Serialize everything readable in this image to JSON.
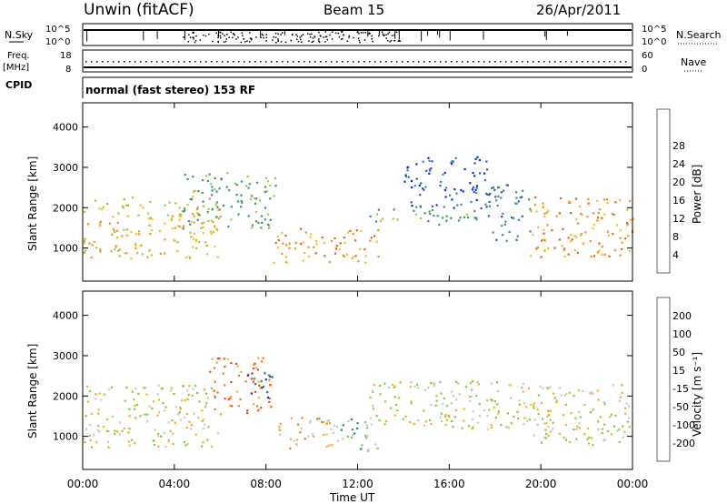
{
  "header": {
    "station": "Unwin (fitACF)",
    "beam": "Beam 15",
    "date": "26/Apr/2011"
  },
  "status_panels": {
    "nsky": {
      "label": "N.Sky",
      "ticks": [
        "10^5",
        "10^0"
      ]
    },
    "nsearch": {
      "label": "N.Search",
      "ticks": [
        "10^5",
        "10^0"
      ]
    },
    "freq": {
      "label_top": "Freq.",
      "label_unit": "[MHz]",
      "ticks": [
        "18",
        "8"
      ]
    },
    "nave": {
      "label": "Nave",
      "ticks": [
        "60",
        "0"
      ]
    },
    "cpid": {
      "label": "CPID",
      "value": "normal (fast stereo) 153 RF"
    }
  },
  "chart_data": [
    {
      "type": "heatmap",
      "panel": "power",
      "title": "",
      "xlabel": "Time UT",
      "ylabel": "Slant Range [km]",
      "x_ticks": [
        "00:00",
        "04:00",
        "08:00",
        "12:00",
        "16:00",
        "20:00",
        "00:00"
      ],
      "x_range_hours": [
        0,
        24
      ],
      "y_ticks": [
        1000,
        2000,
        3000,
        4000
      ],
      "y_range_km": [
        180,
        4600
      ],
      "colorbar": {
        "label": "Power [dB]",
        "ticks": [
          "4",
          "8",
          "12",
          "16",
          "20",
          "24",
          "28"
        ],
        "colors": [
          "#0a2bdc",
          "#2f55c8",
          "#3d8a9a",
          "#3f9a5a",
          "#9ccc3c",
          "#f0c020",
          "#f09020",
          "#ef5a1a",
          "#e0181a"
        ]
      },
      "echo_regions": [
        {
          "t0": 0,
          "t1": 6,
          "r0": 750,
          "r1": 2300,
          "level": 5
        },
        {
          "t0": 4.3,
          "t1": 8.4,
          "r0": 1500,
          "r1": 2900,
          "level": 3
        },
        {
          "t0": 8.3,
          "t1": 13,
          "r0": 650,
          "r1": 1500,
          "level": 6
        },
        {
          "t0": 12.5,
          "t1": 17.5,
          "r0": 1600,
          "r1": 2000,
          "level": 3
        },
        {
          "t0": 14,
          "t1": 17.8,
          "r0": 2000,
          "r1": 3300,
          "level": 1
        },
        {
          "t0": 17.5,
          "t1": 19.5,
          "r0": 1200,
          "r1": 2600,
          "level": 2
        },
        {
          "t0": 19.5,
          "t1": 24,
          "r0": 800,
          "r1": 2300,
          "level": 6
        }
      ]
    },
    {
      "type": "heatmap",
      "panel": "velocity",
      "title": "",
      "xlabel": "Time UT",
      "ylabel": "Slant Range [km]",
      "x_ticks": [
        "00:00",
        "04:00",
        "08:00",
        "12:00",
        "16:00",
        "20:00",
        "00:00"
      ],
      "x_range_hours": [
        0,
        24
      ],
      "y_ticks": [
        1000,
        2000,
        3000,
        4000
      ],
      "y_range_km": [
        180,
        4600
      ],
      "colorbar": {
        "label": "Velocity [m s⁻¹]",
        "ticks": [
          "200",
          "100",
          "50",
          "15",
          "-15",
          "-50",
          "-100",
          "-200"
        ],
        "colors": [
          "#1a2ad8",
          "#2e5ec0",
          "#2f8a55",
          "#7fce3a",
          "#c8c8c0",
          "#f0b020",
          "#f07a18",
          "#ef4a18",
          "#e01414"
        ]
      },
      "echo_regions": [
        {
          "t0": 0,
          "t1": 6,
          "r0": 750,
          "r1": 2300,
          "level": 4
        },
        {
          "t0": 5.5,
          "t1": 8.2,
          "r0": 1600,
          "r1": 3000,
          "level": 6
        },
        {
          "t0": 7,
          "t1": 8.3,
          "r0": 1900,
          "r1": 2600,
          "level": 1
        },
        {
          "t0": 8.3,
          "t1": 11,
          "r0": 650,
          "r1": 1500,
          "level": 5
        },
        {
          "t0": 11,
          "t1": 13,
          "r0": 650,
          "r1": 1500,
          "level": 3
        },
        {
          "t0": 12.5,
          "t1": 19.5,
          "r0": 1200,
          "r1": 2400,
          "level": 4
        },
        {
          "t0": 19.5,
          "t1": 24,
          "r0": 800,
          "r1": 2300,
          "level": 4
        }
      ]
    }
  ]
}
